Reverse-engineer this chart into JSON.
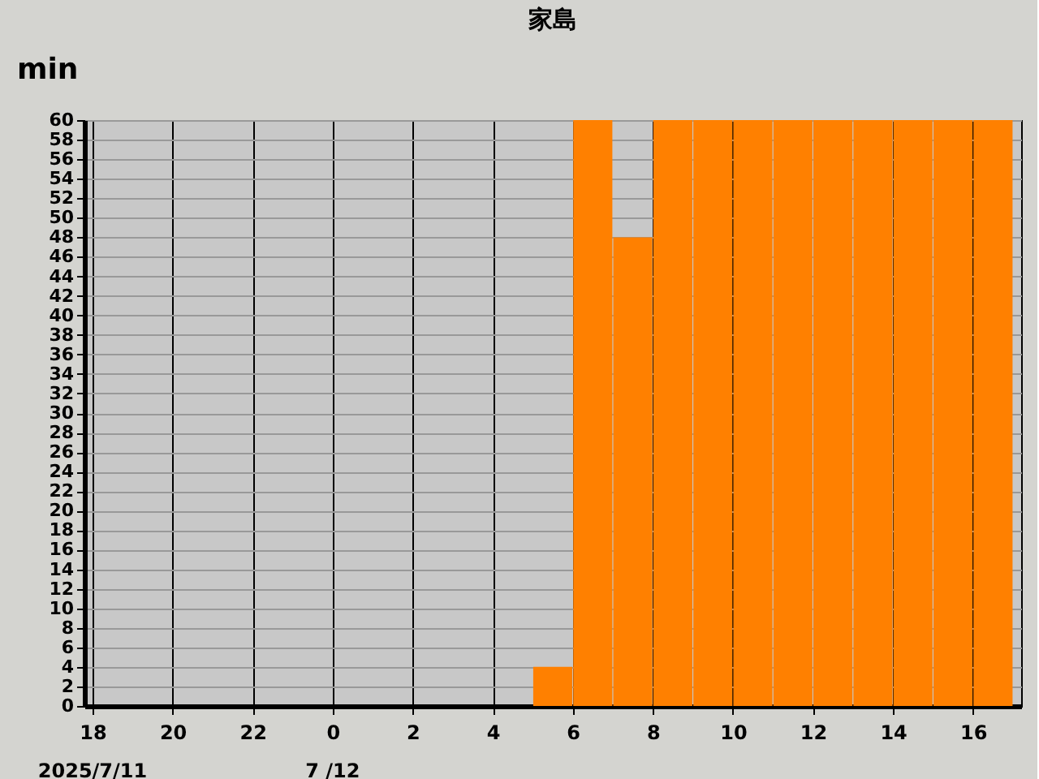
{
  "chart_data": {
    "type": "bar",
    "title": "家島",
    "ylabel": "min",
    "x": [
      "2025-07-11T18:30",
      "2025-07-11T19:30",
      "2025-07-11T20:30",
      "2025-07-11T21:30",
      "2025-07-11T22:30",
      "2025-07-11T23:30",
      "2025-07-12T00:30",
      "2025-07-12T01:30",
      "2025-07-12T02:30",
      "2025-07-12T03:30",
      "2025-07-12T04:30",
      "2025-07-12T05:30",
      "2025-07-12T06:30",
      "2025-07-12T07:30",
      "2025-07-12T08:30",
      "2025-07-12T09:30",
      "2025-07-12T10:30",
      "2025-07-12T11:30",
      "2025-07-12T12:30",
      "2025-07-12T13:30",
      "2025-07-12T14:30",
      "2025-07-12T15:30",
      "2025-07-12T16:30"
    ],
    "values": [
      0,
      0,
      0,
      0,
      0,
      0,
      0,
      0,
      0,
      0,
      0,
      4,
      60,
      48,
      60,
      60,
      60,
      60,
      60,
      60,
      60,
      60,
      60
    ],
    "color": "#ff8000",
    "xlim": [
      "2025-07-11T18:00",
      "2025-07-12T17:00"
    ],
    "xticks": [
      {
        "value": "2025-07-11T18:00",
        "label": "18"
      },
      {
        "value": "2025-07-11T20:00",
        "label": "20"
      },
      {
        "value": "2025-07-11T22:00",
        "label": "22"
      },
      {
        "value": "2025-07-12T00:00",
        "label": "0"
      },
      {
        "value": "2025-07-12T02:00",
        "label": "2"
      },
      {
        "value": "2025-07-12T04:00",
        "label": "4"
      },
      {
        "value": "2025-07-12T06:00",
        "label": "6"
      },
      {
        "value": "2025-07-12T08:00",
        "label": "8"
      },
      {
        "value": "2025-07-12T10:00",
        "label": "10"
      },
      {
        "value": "2025-07-12T12:00",
        "label": "12"
      },
      {
        "value": "2025-07-12T14:00",
        "label": "14"
      },
      {
        "value": "2025-07-12T16:00",
        "label": "16"
      }
    ],
    "ylim": [
      0,
      60
    ],
    "yticks": [
      0,
      2,
      4,
      6,
      8,
      10,
      12,
      14,
      16,
      18,
      20,
      22,
      24,
      26,
      28,
      30,
      32,
      34,
      36,
      38,
      40,
      42,
      44,
      46,
      48,
      50,
      52,
      54,
      56,
      58,
      60
    ],
    "annotations": [
      "2025/7/11",
      "7 /12"
    ],
    "grid": true
  }
}
